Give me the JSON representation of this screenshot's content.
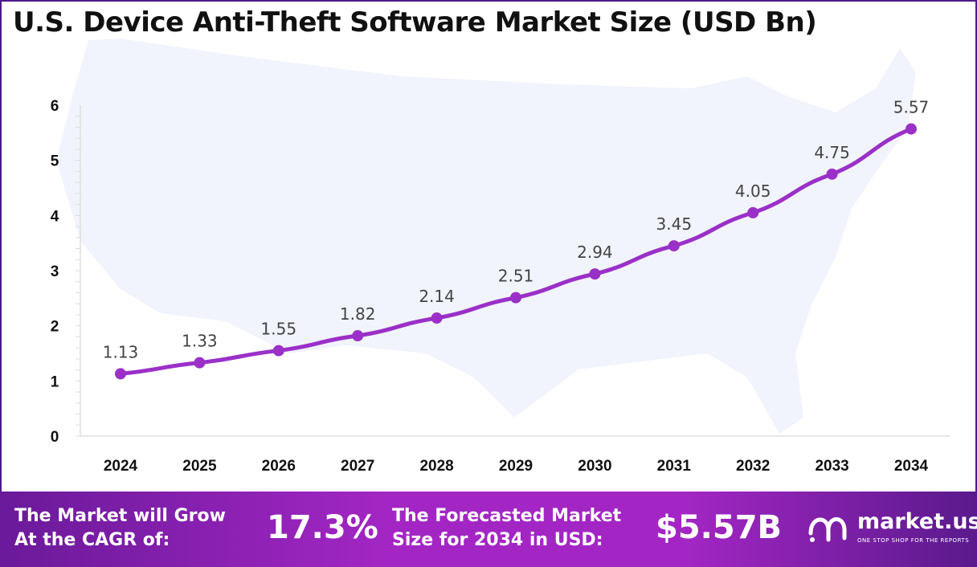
{
  "chart_data": {
    "type": "line",
    "title": "U.S. Device Anti-Theft Software Market Size (USD Bn)",
    "categories": [
      "2024",
      "2025",
      "2026",
      "2027",
      "2028",
      "2029",
      "2030",
      "2031",
      "2032",
      "2033",
      "2034"
    ],
    "values": [
      1.13,
      1.33,
      1.55,
      1.82,
      2.14,
      2.51,
      2.94,
      3.45,
      4.05,
      4.75,
      5.57
    ],
    "data_labels": [
      "1.13",
      "1.33",
      "1.55",
      "1.82",
      "2.14",
      "2.51",
      "2.94",
      "3.45",
      "4.05",
      "4.75",
      "5.57"
    ],
    "yticks": [
      "0",
      "1",
      "2",
      "3",
      "4",
      "5",
      "6"
    ],
    "ylim": [
      0,
      6
    ],
    "grid": false,
    "line_color": "#9b30c8",
    "xlabel": "",
    "ylabel": ""
  },
  "footer": {
    "cagr_text_line1": "The Market will Grow",
    "cagr_text_line2": "At the CAGR of:",
    "cagr_value": "17.3%",
    "forecast_text_line1": "The Forecasted Market",
    "forecast_text_line2": "Size for 2034 in USD:",
    "forecast_value": "$5.57B",
    "logo_name": "market.us",
    "logo_tagline": "ONE STOP SHOP FOR THE REPORTS",
    "background_color": "#a326c4"
  }
}
